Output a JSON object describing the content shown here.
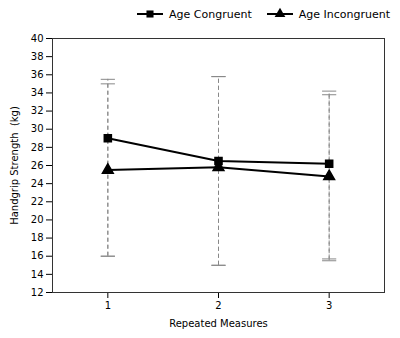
{
  "chart_data": {
    "type": "line",
    "xlabel": "Repeated Measures",
    "ylabel": "Handgrip Strength  (kg)",
    "x": [
      1,
      2,
      3
    ],
    "series": [
      {
        "name": "Age Congruent",
        "color": "#000000",
        "marker": "square",
        "values": [
          29.0,
          26.5,
          26.2
        ],
        "error_up": [
          6.5,
          9.3,
          8.0
        ],
        "error_down": [
          13.0,
          11.5,
          10.5
        ]
      },
      {
        "name": "Age Incongruent",
        "color": "#000000",
        "marker": "triangle",
        "values": [
          25.5,
          25.8,
          24.8
        ],
        "error_up": [
          9.5,
          10.0,
          9.0
        ],
        "error_down": [
          9.5,
          10.8,
          9.3
        ]
      }
    ],
    "xlim": [
      0.5,
      3.5
    ],
    "xticks": [
      1,
      2,
      3
    ],
    "ylim": [
      12,
      40
    ],
    "yticks": [
      12,
      14,
      16,
      18,
      20,
      22,
      24,
      26,
      28,
      30,
      32,
      34,
      36,
      38,
      40
    ],
    "legend": "upper right"
  }
}
